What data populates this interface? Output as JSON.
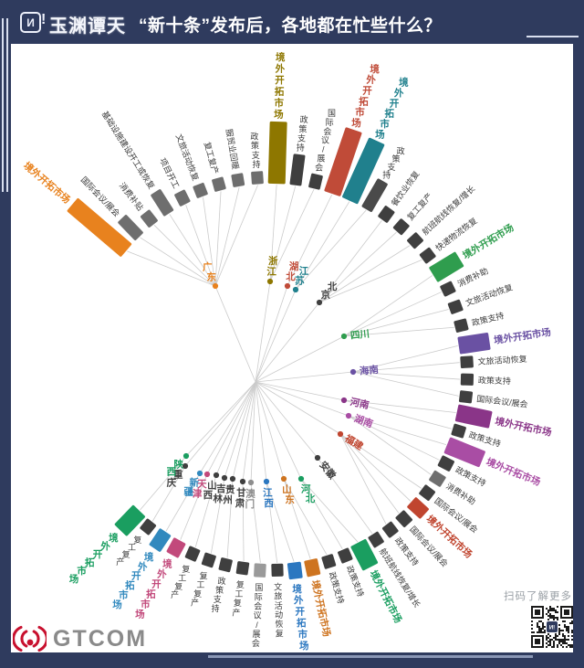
{
  "header": {
    "badge": "И",
    "badge_bang": "!",
    "brand": "玉渊谭天",
    "title": "“新十条”发布后，各地都在忙些什么？"
  },
  "footer": {
    "brand": "GTCOM",
    "qr_caption": "扫码了解更多"
  },
  "colors": {
    "canvas": "#2F3B5E",
    "panel": "#FFFFFF",
    "link_line": "#CBCBCB",
    "dark_bar": "#3F3F3F",
    "gray_bar": "#6E6E6E",
    "light_bar": "#9A9A9A",
    "label_dark": "#3A3A3A",
    "gtcom_red": "#C8102E"
  },
  "chart_data": {
    "type": "radial-bar-tree",
    "title": "“新十条”发布后，各地都在忙些什么？",
    "legend": "none",
    "grid": false,
    "note": "sizes are relative bar lengths read from the figure (px)",
    "provinces": [
      {
        "name": "广东",
        "color": "#E8821E",
        "bars": [
          {
            "label": "境外开拓市场",
            "size": 78,
            "color": "#E8821E",
            "accent": true
          },
          {
            "label": "国际会议/展会",
            "size": 28,
            "color": "#6E6E6E",
            "accent": false
          },
          {
            "label": "消费补贴",
            "size": 16,
            "color": "#6E6E6E",
            "accent": false
          },
          {
            "label": "基础设施建设开工或恢复",
            "size": 28,
            "color": "#6E6E6E",
            "accent": false
          },
          {
            "label": "项目开工",
            "size": 15,
            "color": "#6E6E6E",
            "accent": false
          },
          {
            "label": "文旅活动恢复",
            "size": 14,
            "color": "#6E6E6E",
            "accent": false
          },
          {
            "label": "复工复产",
            "size": 14,
            "color": "#6E6E6E",
            "accent": false
          },
          {
            "label": "服贸业回暖",
            "size": 14,
            "color": "#6E6E6E",
            "accent": false
          },
          {
            "label": "政策支持",
            "size": 14,
            "color": "#6E6E6E",
            "accent": false
          }
        ]
      },
      {
        "name": "浙江",
        "color": "#8E7700",
        "bars": [
          {
            "label": "境外开拓市场",
            "size": 68,
            "color": "#8E7700",
            "accent": true
          },
          {
            "label": "政策支持",
            "size": 34,
            "color": "#3F3F3F",
            "accent": false
          },
          {
            "label": "国际会议/展会",
            "size": 16,
            "color": "#3F3F3F",
            "accent": false
          }
        ]
      },
      {
        "name": "湖北",
        "color": "#C04B38",
        "bars": [
          {
            "label": "境外开拓市场",
            "size": 74,
            "color": "#C04B38",
            "accent": true
          }
        ]
      },
      {
        "name": "江苏",
        "color": "#20808D",
        "bars": [
          {
            "label": "境外开拓市场",
            "size": 72,
            "color": "#20808D",
            "accent": true
          },
          {
            "label": "政策支持",
            "size": 36,
            "color": "#4A4A4A",
            "accent": false
          }
        ]
      },
      {
        "name": "北京",
        "color": "#3F3F3F",
        "bars": [
          {
            "label": "餐饮业恢复",
            "size": 15,
            "color": "#3F3F3F",
            "accent": false
          },
          {
            "label": "复工复产",
            "size": 14,
            "color": "#3F3F3F",
            "accent": false
          },
          {
            "label": "航班航线恢复/增长",
            "size": 14,
            "color": "#3F3F3F",
            "accent": false
          },
          {
            "label": "快递物流恢复",
            "size": 14,
            "color": "#3F3F3F",
            "accent": false
          }
        ]
      },
      {
        "name": "四川",
        "color": "#2F9D4E",
        "bars": [
          {
            "label": "境外开拓市场",
            "size": 34,
            "color": "#2F9D4E",
            "accent": true
          },
          {
            "label": "消费补助",
            "size": 14,
            "color": "#3F3F3F",
            "accent": false
          },
          {
            "label": "文旅活动恢复",
            "size": 14,
            "color": "#3F3F3F",
            "accent": false
          },
          {
            "label": "政策支持",
            "size": 14,
            "color": "#3F3F3F",
            "accent": false
          }
        ]
      },
      {
        "name": "海南",
        "color": "#6A51A3",
        "bars": [
          {
            "label": "境外开拓市场",
            "size": 34,
            "color": "#6A51A3",
            "accent": true
          },
          {
            "label": "文旅活动恢复",
            "size": 14,
            "color": "#3F3F3F",
            "accent": false
          },
          {
            "label": "政策支持",
            "size": 14,
            "color": "#3F3F3F",
            "accent": false
          },
          {
            "label": "国际会议/展会",
            "size": 14,
            "color": "#3F3F3F",
            "accent": false
          }
        ]
      },
      {
        "name": "河南",
        "color": "#8A3588",
        "bars": [
          {
            "label": "境外开拓市场",
            "size": 38,
            "color": "#8A3588",
            "accent": true
          },
          {
            "label": "政策支持",
            "size": 14,
            "color": "#3F3F3F",
            "accent": false
          }
        ]
      },
      {
        "name": "湖南",
        "color": "#A94DA4",
        "bars": [
          {
            "label": "境外开拓市场",
            "size": 42,
            "color": "#A94DA4",
            "accent": true
          },
          {
            "label": "政策支持",
            "size": 15,
            "color": "#3F3F3F",
            "accent": false
          },
          {
            "label": "消费补助",
            "size": 15,
            "color": "#6E6E6E",
            "accent": false
          }
        ]
      },
      {
        "name": "福建",
        "color": "#C0452F",
        "bars": [
          {
            "label": "国际会议/展会",
            "size": 14,
            "color": "#3F3F3F",
            "accent": false
          },
          {
            "label": "境外开拓市场",
            "size": 20,
            "color": "#C0452F",
            "accent": true
          },
          {
            "label": "国际会议/展会",
            "size": 15,
            "color": "#3F3F3F",
            "accent": false
          },
          {
            "label": "政策支持",
            "size": 14,
            "color": "#3F3F3F",
            "accent": false
          }
        ]
      },
      {
        "name": "安徽",
        "color": "#3F3F3F",
        "bars": [
          {
            "label": "航班航线恢复/增长",
            "size": 14,
            "color": "#3F3F3F",
            "accent": false
          }
        ]
      },
      {
        "name": "河北",
        "color": "#1A9E60",
        "bars": [
          {
            "label": "境外开拓市场",
            "size": 30,
            "color": "#1A9E60",
            "accent": true
          },
          {
            "label": "政策支持",
            "size": 14,
            "color": "#3F3F3F",
            "accent": false
          }
        ]
      },
      {
        "name": "山东",
        "color": "#CE7420",
        "bars": [
          {
            "label": "政策支持",
            "size": 14,
            "color": "#3F3F3F",
            "accent": false
          },
          {
            "label": "境外开拓市场",
            "size": 18,
            "color": "#CE7420",
            "accent": true
          }
        ]
      },
      {
        "name": "江西",
        "color": "#2B77C0",
        "bars": [
          {
            "label": "境外开拓市场",
            "size": 18,
            "color": "#2B77C0",
            "accent": true
          },
          {
            "label": "文旅活动恢复",
            "size": 14,
            "color": "#3F3F3F",
            "accent": false
          }
        ]
      },
      {
        "name": "澳门",
        "color": "#8E8E8E",
        "bars": [
          {
            "label": "国际会议/展会",
            "size": 15,
            "color": "#9A9A9A",
            "accent": false
          }
        ]
      },
      {
        "name": "甘肃",
        "color": "#3F3F3F",
        "bars": [
          {
            "label": "复工复产",
            "size": 14,
            "color": "#3F3F3F",
            "accent": false
          }
        ]
      },
      {
        "name": "贵州",
        "color": "#3F3F3F",
        "bars": [
          {
            "label": "政策支持",
            "size": 14,
            "color": "#3F3F3F",
            "accent": false
          }
        ]
      },
      {
        "name": "吉林",
        "color": "#3F3F3F",
        "bars": [
          {
            "label": "复工复产",
            "size": 14,
            "color": "#3F3F3F",
            "accent": false
          }
        ]
      },
      {
        "name": "山西",
        "color": "#3F3F3F",
        "bars": [
          {
            "label": "复工复产",
            "size": 14,
            "color": "#3F3F3F",
            "accent": false
          }
        ]
      },
      {
        "name": "天津",
        "color": "#C2497B",
        "bars": [
          {
            "label": "境外开拓市场",
            "size": 18,
            "color": "#C2497B",
            "accent": true
          }
        ]
      },
      {
        "name": "新疆",
        "color": "#3189BE",
        "bars": [
          {
            "label": "境外开拓市场",
            "size": 22,
            "color": "#3189BE",
            "accent": true
          }
        ]
      },
      {
        "name": "重庆",
        "color": "#3F3F3F",
        "bars": [
          {
            "label": "复工复产",
            "size": 14,
            "color": "#3F3F3F",
            "accent": false
          }
        ]
      },
      {
        "name": "陕西",
        "color": "#1A9E60",
        "bars": [
          {
            "label": "境外开拓市场",
            "size": 30,
            "color": "#1A9E60",
            "accent": true
          }
        ]
      }
    ]
  }
}
